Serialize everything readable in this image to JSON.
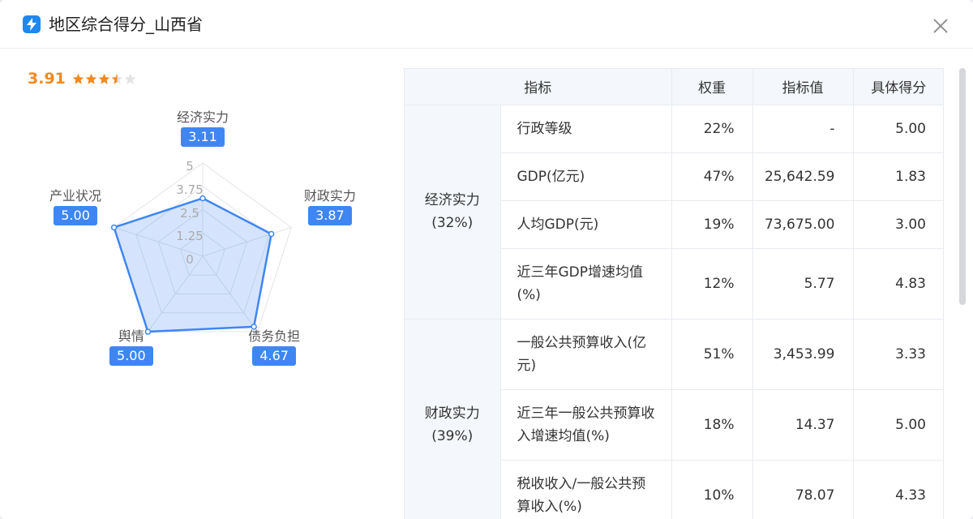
{
  "header": {
    "title": "地区综合得分_山西省"
  },
  "summary": {
    "score": "3.91",
    "stars": 3.5
  },
  "radar": {
    "axes": [
      {
        "label": "经济实力",
        "value": "3.11",
        "score": 3.11
      },
      {
        "label": "财政实力",
        "value": "3.87",
        "score": 3.87
      },
      {
        "label": "债务负担",
        "value": "4.67",
        "score": 4.67
      },
      {
        "label": "舆情",
        "value": "5.00",
        "score": 5.0
      },
      {
        "label": "产业状况",
        "value": "5.00",
        "score": 5.0
      }
    ],
    "ticks": [
      "0",
      "1.25",
      "2.5",
      "3.75",
      "5"
    ],
    "max": 5
  },
  "table": {
    "headers": [
      "指标",
      "权重",
      "指标值",
      "具体得分"
    ],
    "groups": [
      {
        "name": "经济实力",
        "pct": "(32%)",
        "rows": [
          {
            "indicator": "行政等级",
            "weight": "22%",
            "value": "-",
            "score": "5.00"
          },
          {
            "indicator": "GDP(亿元)",
            "weight": "47%",
            "value": "25,642.59",
            "score": "1.83"
          },
          {
            "indicator": "人均GDP(元)",
            "weight": "19%",
            "value": "73,675.00",
            "score": "3.00"
          },
          {
            "indicator": "近三年GDP增速均值(%)",
            "weight": "12%",
            "value": "5.77",
            "score": "4.83"
          }
        ]
      },
      {
        "name": "财政实力",
        "pct": "(39%)",
        "rows": [
          {
            "indicator": "一般公共预算收入(亿元)",
            "weight": "51%",
            "value": "3,453.99",
            "score": "3.33"
          },
          {
            "indicator": "近三年一般公共预算收入增速均值(%)",
            "weight": "18%",
            "value": "14.37",
            "score": "5.00"
          },
          {
            "indicator": "税收收入/一般公共预算收入(%)",
            "weight": "10%",
            "value": "78.07",
            "score": "4.33"
          }
        ]
      }
    ]
  },
  "colors": {
    "accent": "#3f86f3",
    "score": "#f08a22",
    "star": "#f08a22",
    "star_empty": "#e3e3e3"
  }
}
